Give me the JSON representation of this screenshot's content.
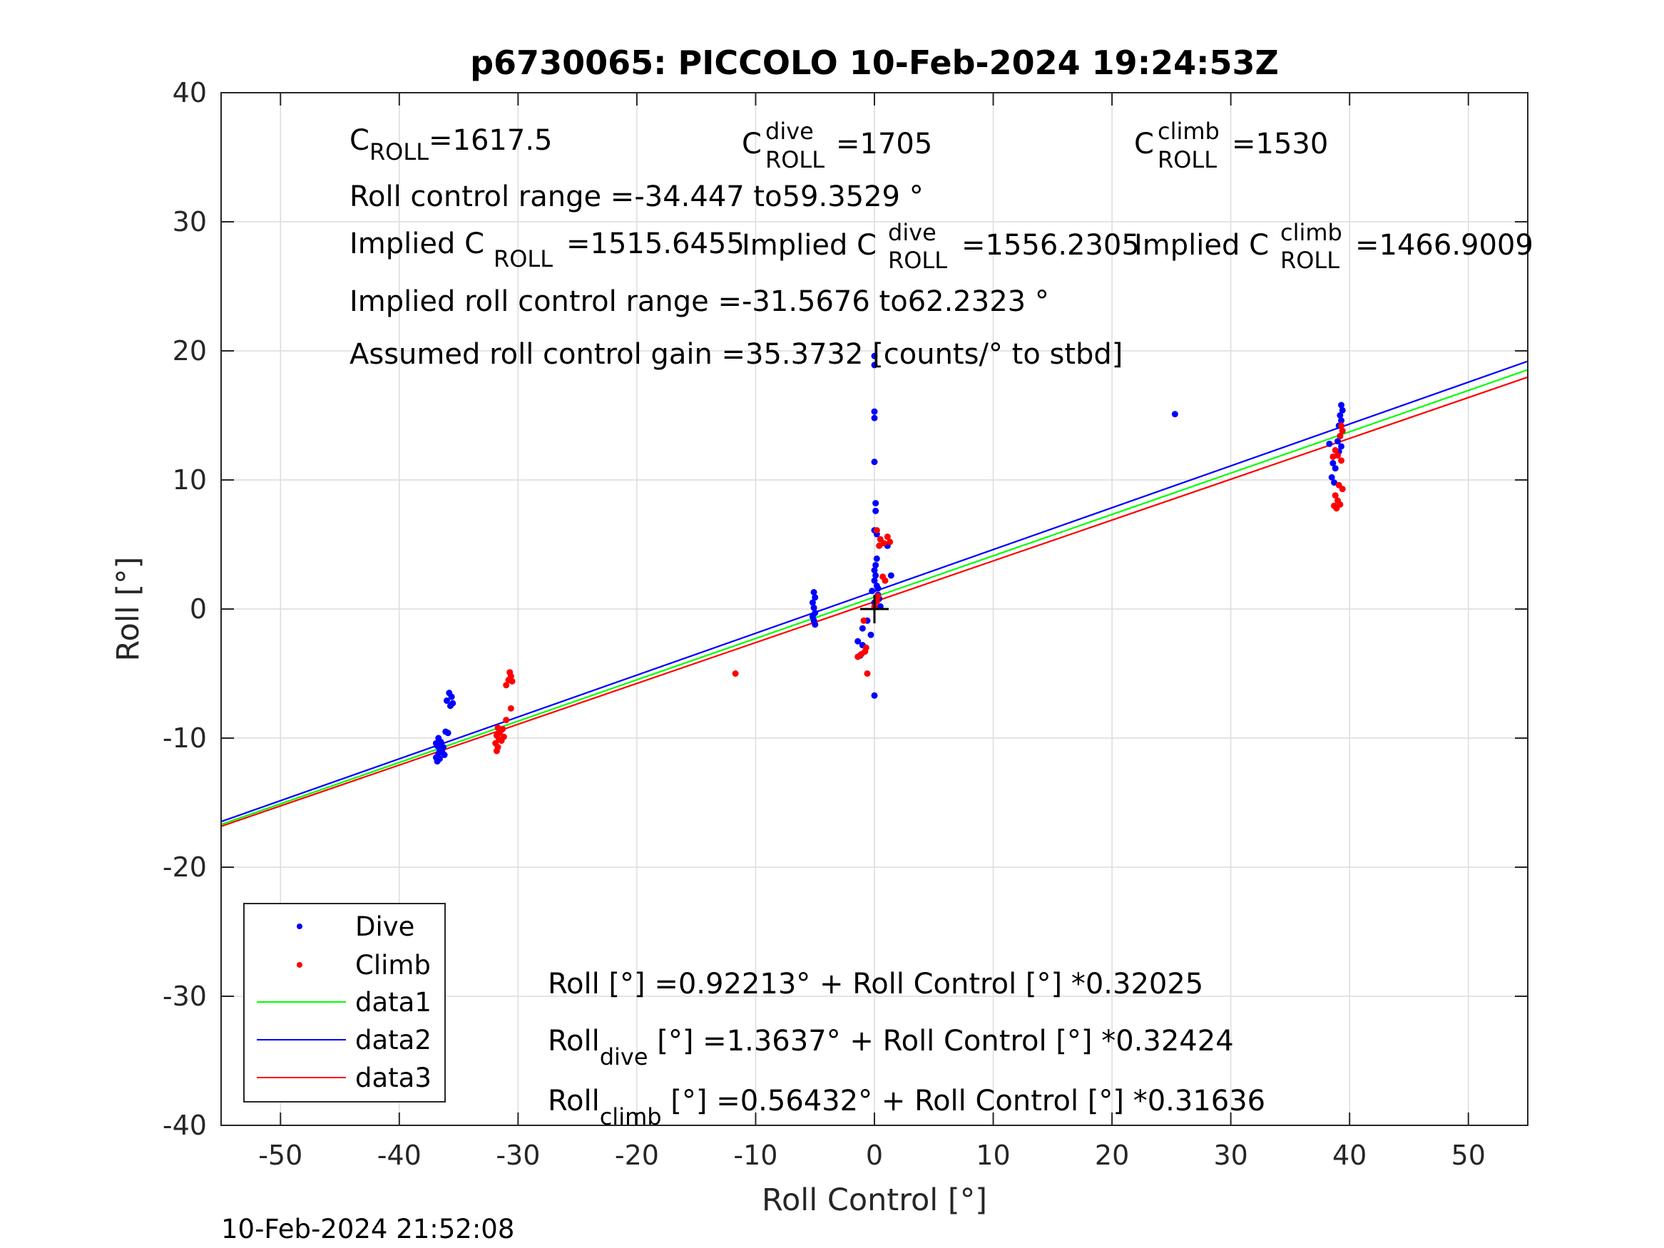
{
  "chart_data": {
    "type": "scatter",
    "title": "p6730065: PICCOLO 10-Feb-2024 19:24:53Z",
    "xlabel": "Roll Control [°]",
    "ylabel": "Roll [°]",
    "xlim": [
      -55,
      55
    ],
    "ylim": [
      -40,
      40
    ],
    "xticks": [
      -50,
      -40,
      -30,
      -20,
      -10,
      0,
      10,
      20,
      30,
      40,
      50
    ],
    "yticks": [
      -40,
      -30,
      -20,
      -10,
      0,
      10,
      20,
      30,
      40
    ],
    "grid": true,
    "legend_position": "bottom-left",
    "series": [
      {
        "name": "Dive",
        "kind": "points",
        "color": "#0000ff",
        "points": [
          [
            -36.8,
            -11.8
          ],
          [
            -36.9,
            -11.5
          ],
          [
            -36.7,
            -11.2
          ],
          [
            -36.6,
            -10.9
          ],
          [
            -36.8,
            -10.6
          ],
          [
            -36.5,
            -10.3
          ],
          [
            -36.7,
            -10.0
          ],
          [
            -36.4,
            -11.0
          ],
          [
            -36.2,
            -11.3
          ],
          [
            -36.6,
            -11.6
          ],
          [
            -36.3,
            -10.7
          ],
          [
            -36.9,
            -10.4
          ],
          [
            -35.9,
            -9.6
          ],
          [
            -36.1,
            -9.5
          ],
          [
            -35.7,
            -7.5
          ],
          [
            -36.0,
            -7.1
          ],
          [
            -35.6,
            -6.8
          ],
          [
            -35.8,
            -6.5
          ],
          [
            -35.5,
            -7.3
          ],
          [
            -5.1,
            1.3
          ],
          [
            -5.0,
            0.9
          ],
          [
            -5.2,
            0.5
          ],
          [
            -5.1,
            0.1
          ],
          [
            -5.0,
            -0.3
          ],
          [
            -5.2,
            -0.6
          ],
          [
            -5.1,
            -0.9
          ],
          [
            -5.0,
            -1.2
          ],
          [
            0.0,
            19.6
          ],
          [
            0.0,
            18.9
          ],
          [
            0.0,
            15.3
          ],
          [
            0.0,
            14.8
          ],
          [
            0.0,
            11.4
          ],
          [
            0.1,
            8.2
          ],
          [
            0.1,
            7.6
          ],
          [
            0.0,
            6.1
          ],
          [
            0.2,
            5.8
          ],
          [
            0.2,
            3.9
          ],
          [
            0.1,
            3.4
          ],
          [
            0.0,
            3.0
          ],
          [
            0.1,
            2.6
          ],
          [
            0.0,
            2.2
          ],
          [
            0.2,
            1.8
          ],
          [
            0.3,
            1.6
          ],
          [
            -0.2,
            1.4
          ],
          [
            0.3,
            1.1
          ],
          [
            0.4,
            0.8
          ],
          [
            0.0,
            0.5
          ],
          [
            0.5,
            0.2
          ],
          [
            1.1,
            4.9
          ],
          [
            1.4,
            2.6
          ],
          [
            -0.6,
            -0.9
          ],
          [
            -1.0,
            -1.5
          ],
          [
            -0.3,
            -2.0
          ],
          [
            -1.4,
            -2.5
          ],
          [
            -1.0,
            -2.8
          ],
          [
            -1.2,
            -3.6
          ],
          [
            0.0,
            -6.7
          ],
          [
            25.3,
            15.1
          ],
          [
            39.3,
            15.8
          ],
          [
            39.4,
            15.4
          ],
          [
            39.2,
            15.0
          ],
          [
            39.3,
            14.6
          ],
          [
            39.1,
            14.2
          ],
          [
            39.4,
            13.8
          ],
          [
            39.2,
            13.4
          ],
          [
            39.0,
            13.0
          ],
          [
            38.3,
            12.8
          ],
          [
            39.3,
            12.6
          ],
          [
            39.1,
            12.2
          ],
          [
            38.6,
            11.3
          ],
          [
            38.8,
            10.9
          ],
          [
            38.5,
            10.2
          ],
          [
            38.7,
            9.8
          ]
        ]
      },
      {
        "name": "Climb",
        "kind": "points",
        "color": "#ff0000",
        "points": [
          [
            -31.8,
            -11.0
          ],
          [
            -31.7,
            -10.7
          ],
          [
            -31.9,
            -10.4
          ],
          [
            -31.6,
            -10.1
          ],
          [
            -31.8,
            -9.8
          ],
          [
            -31.5,
            -9.5
          ],
          [
            -31.7,
            -9.2
          ],
          [
            -31.4,
            -10.2
          ],
          [
            -31.2,
            -9.9
          ],
          [
            -31.6,
            -9.6
          ],
          [
            -31.3,
            -9.3
          ],
          [
            -31.0,
            -8.6
          ],
          [
            -30.6,
            -7.7
          ],
          [
            -31.0,
            -5.9
          ],
          [
            -30.8,
            -5.5
          ],
          [
            -30.6,
            -5.2
          ],
          [
            -30.7,
            -4.9
          ],
          [
            -30.5,
            -5.6
          ],
          [
            -11.7,
            -5.0
          ],
          [
            0.2,
            6.1
          ],
          [
            0.5,
            5.4
          ],
          [
            0.8,
            5.1
          ],
          [
            0.4,
            4.9
          ],
          [
            1.1,
            5.6
          ],
          [
            1.3,
            5.2
          ],
          [
            0.7,
            2.5
          ],
          [
            0.9,
            2.2
          ],
          [
            0.3,
            1.0
          ],
          [
            0.2,
            0.6
          ],
          [
            0.0,
            0.2
          ],
          [
            -0.9,
            -0.9
          ],
          [
            -0.7,
            -3.0
          ],
          [
            -0.8,
            -3.3
          ],
          [
            -1.1,
            -3.5
          ],
          [
            -1.4,
            -3.7
          ],
          [
            -0.6,
            -5.0
          ],
          [
            39.3,
            14.2
          ],
          [
            39.4,
            13.8
          ],
          [
            39.2,
            13.4
          ],
          [
            38.8,
            12.3
          ],
          [
            39.0,
            11.9
          ],
          [
            39.3,
            11.5
          ],
          [
            38.6,
            11.8
          ],
          [
            39.1,
            9.6
          ],
          [
            39.4,
            9.3
          ],
          [
            38.8,
            8.8
          ],
          [
            39.0,
            8.4
          ],
          [
            38.7,
            8.0
          ],
          [
            39.2,
            8.1
          ],
          [
            38.9,
            7.8
          ]
        ]
      },
      {
        "name": "data1",
        "kind": "line",
        "color": "#00ff00",
        "intercept": 0.92213,
        "slope": 0.32025
      },
      {
        "name": "data2",
        "kind": "line",
        "color": "#0000ff",
        "intercept": 1.3637,
        "slope": 0.32424
      },
      {
        "name": "data3",
        "kind": "line",
        "color": "#ff0000",
        "intercept": 0.56432,
        "slope": 0.31636
      }
    ],
    "origin_marker": [
      0,
      0
    ],
    "annotations": {
      "c_roll_main": "C",
      "c_roll_sub": "ROLL",
      "c_roll_val": "=1617.5",
      "c_dive_main": "C",
      "c_dive_sup": "dive",
      "c_dive_sub": "ROLL",
      "c_dive_val": "=1705",
      "c_climb_main": "C",
      "c_climb_sup": "climb",
      "c_climb_sub": "ROLL",
      "c_climb_val": "=1530",
      "roll_range": "Roll control range =-34.447 to59.3529 °",
      "implied_main": "Implied C",
      "implied_sub": "ROLL",
      "implied_val": "=1515.6455",
      "implied_dive_main": "Implied C",
      "implied_dive_sup": "dive",
      "implied_dive_sub": "ROLL",
      "implied_dive_val": "=1556.2305",
      "implied_climb_main": "Implied C",
      "implied_climb_sup": "climb",
      "implied_climb_sub": "ROLL",
      "implied_climb_val": "=1466.9009",
      "implied_range": "Implied roll control range =-31.5676 to62.2323 °",
      "gain": "Assumed roll control gain =35.3732 [counts/° to stbd]",
      "fit_all": "Roll [°] =0.92213° + Roll Control [°] *0.32025",
      "fit_dive_main": "Roll",
      "fit_dive_sub": "dive",
      "fit_dive_rest": " [°] =1.3637° + Roll Control [°] *0.32424",
      "fit_climb_main": "Roll",
      "fit_climb_sub": "climb",
      "fit_climb_rest": " [°] =0.56432° + Roll Control [°] *0.31636"
    }
  },
  "timestamp": "10-Feb-2024 21:52:08"
}
